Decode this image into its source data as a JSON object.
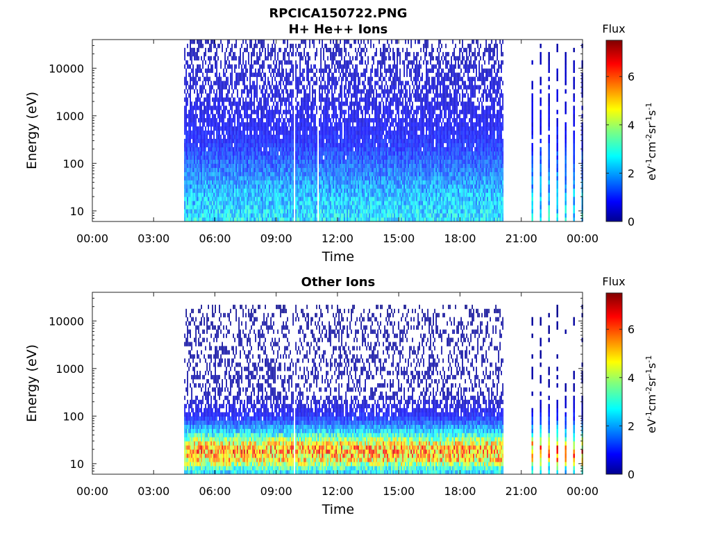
{
  "figure": {
    "title": "RPCICA150722.PNG"
  },
  "chart_data": [
    {
      "type": "heatmap",
      "title": "H+ He++ Ions",
      "xlabel": "Time",
      "ylabel": "Energy (eV)",
      "x_ticks": [
        "00:00",
        "03:00",
        "06:00",
        "09:00",
        "12:00",
        "15:00",
        "18:00",
        "21:00",
        "00:00"
      ],
      "x_range_hours": [
        0,
        24
      ],
      "y_scale": "log",
      "y_ticks": [
        10,
        100,
        1000,
        10000
      ],
      "y_tick_labels": [
        "10",
        "100",
        "1000",
        "10000"
      ],
      "y_range": [
        6,
        40000
      ],
      "colorbar": {
        "title": "Flux",
        "label": "eV-1cm-2sr-1s-1",
        "range": [
          0,
          7.5
        ],
        "ticks": [
          "0",
          "2",
          "4",
          "6"
        ],
        "colormap": "jet"
      },
      "data_coverage": [
        {
          "start_hour": 4.5,
          "end_hour": 20.1,
          "mode": "continuous"
        },
        {
          "start_hour": 21.5,
          "end_hour": 24.0,
          "mode": "intermittent"
        }
      ],
      "data_gaps": [
        9.9,
        11.0
      ],
      "energy_profile": [
        {
          "energy": 7,
          "flux": 2.6
        },
        {
          "energy": 10,
          "flux": 2.5
        },
        {
          "energy": 20,
          "flux": 2.3
        },
        {
          "energy": 40,
          "flux": 2.0
        },
        {
          "energy": 100,
          "flux": 1.5
        },
        {
          "energy": 300,
          "flux": 1.0
        },
        {
          "energy": 1000,
          "flux": 0.75
        },
        {
          "energy": 3000,
          "flux": 0.6
        },
        {
          "energy": 10000,
          "flux": 0.5
        },
        {
          "energy": 15000,
          "flux": 0.4
        },
        {
          "energy": 30000,
          "flux": 0.3
        }
      ],
      "seed": 11
    },
    {
      "type": "heatmap",
      "title": "Other Ions",
      "xlabel": "Time",
      "ylabel": "Energy (eV)",
      "x_ticks": [
        "00:00",
        "03:00",
        "06:00",
        "09:00",
        "12:00",
        "15:00",
        "18:00",
        "21:00",
        "00:00"
      ],
      "x_range_hours": [
        0,
        24
      ],
      "y_scale": "log",
      "y_ticks": [
        10,
        100,
        1000,
        10000
      ],
      "y_tick_labels": [
        "10",
        "100",
        "1000",
        "10000"
      ],
      "y_range": [
        6,
        40000
      ],
      "colorbar": {
        "title": "Flux",
        "label": "eV-1cm-2sr-1s-1",
        "range": [
          0,
          7.5
        ],
        "ticks": [
          "0",
          "2",
          "4",
          "6"
        ],
        "colormap": "jet"
      },
      "data_coverage": [
        {
          "start_hour": 4.5,
          "end_hour": 20.1,
          "mode": "continuous"
        },
        {
          "start_hour": 21.5,
          "end_hour": 24.0,
          "mode": "intermittent"
        }
      ],
      "data_gaps": [
        9.9
      ],
      "energy_profile": [
        {
          "energy": 7,
          "flux": 2.6
        },
        {
          "energy": 12,
          "flux": 4.8
        },
        {
          "energy": 20,
          "flux": 5.6
        },
        {
          "energy": 30,
          "flux": 4.2
        },
        {
          "energy": 45,
          "flux": 2.6
        },
        {
          "energy": 80,
          "flux": 1.3
        },
        {
          "energy": 120,
          "flux": 0.8
        },
        {
          "energy": 300,
          "flux": 0.3
        },
        {
          "energy": 1000,
          "flux": 0.25
        },
        {
          "energy": 10000,
          "flux": 0.2
        },
        {
          "energy": 30000,
          "flux": 0.0
        }
      ],
      "seed": 23
    }
  ]
}
